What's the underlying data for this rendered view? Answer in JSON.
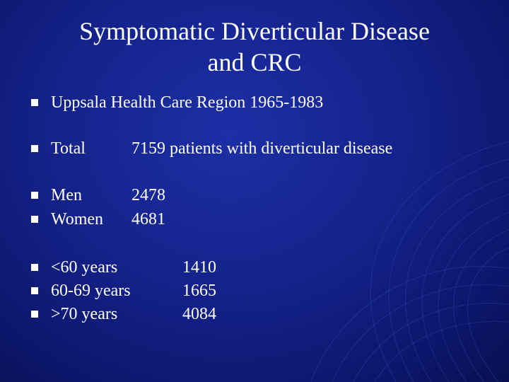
{
  "slide": {
    "title_line1": "Symptomatic Diverticular Disease",
    "title_line2": "and CRC"
  },
  "rows": [
    {
      "label": "Uppsala Health Care Region 1965-1983",
      "value": ""
    },
    {
      "label": "Total",
      "value": "7159 patients with diverticular disease"
    },
    {
      "label": "Men",
      "value": "2478"
    },
    {
      "label": "Women",
      "value": "4681"
    },
    {
      "label": "<60 years",
      "value": "1410"
    },
    {
      "label": "60-69 years",
      "value": "1665"
    },
    {
      "label": ">70 years",
      "value": "4084"
    }
  ],
  "colors": {
    "background": "#14228a",
    "text": "#ffffff",
    "bullet": "#ffffff"
  }
}
